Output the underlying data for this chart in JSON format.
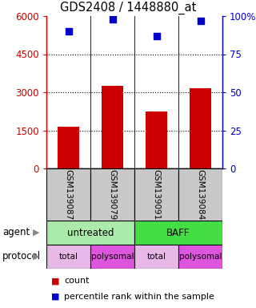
{
  "title": "GDS2408 / 1448880_at",
  "samples": [
    "GSM139087",
    "GSM139079",
    "GSM139091",
    "GSM139084"
  ],
  "counts": [
    1650,
    3250,
    2250,
    3150
  ],
  "percentiles": [
    90,
    98,
    87,
    97
  ],
  "ylim_left": [
    0,
    6000
  ],
  "ylim_right": [
    0,
    100
  ],
  "yticks_left": [
    0,
    1500,
    3000,
    4500,
    6000
  ],
  "yticks_right": [
    0,
    25,
    50,
    75,
    100
  ],
  "ytick_labels_left": [
    "0",
    "1500",
    "3000",
    "4500",
    "6000"
  ],
  "ytick_labels_right": [
    "0",
    "25",
    "50",
    "75",
    "100%"
  ],
  "bar_color": "#cc0000",
  "scatter_color": "#0000cc",
  "agent_labels": [
    "untreated",
    "BAFF"
  ],
  "agent_color_untreated": "#aaeaaa",
  "agent_color_baff": "#44dd44",
  "protocol_color_total": "#e8b8e8",
  "protocol_color_polysomal": "#dd55dd",
  "protocol_labels": [
    "total",
    "polysomal",
    "total",
    "polysomal"
  ],
  "legend_count_color": "#cc0000",
  "legend_pct_color": "#0000cc",
  "background_color": "#ffffff",
  "left_tick_color": "#cc0000",
  "right_tick_color": "#0000cc",
  "sample_box_color": "#c8c8c8",
  "grid_dotted_color": "#333333"
}
